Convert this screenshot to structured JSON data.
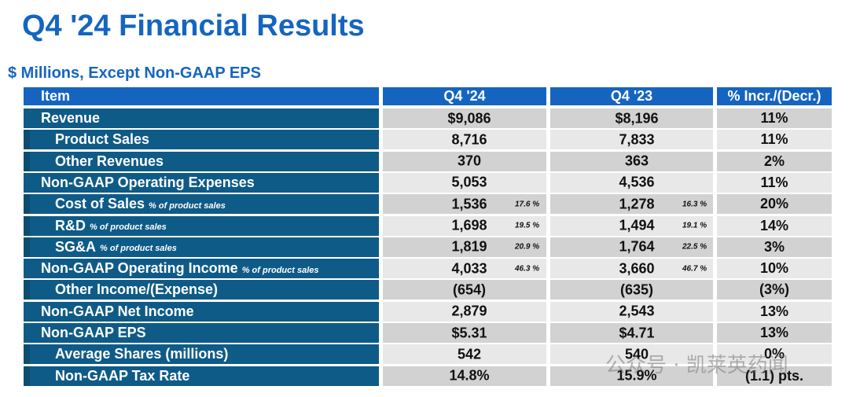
{
  "title": "Q4 '24 Financial Results",
  "subtitle": "$ Millions, Except Non-GAAP EPS",
  "table": {
    "header": [
      "Item",
      "Q4 '24",
      "Q4 '23",
      "% Incr./(Decr.)"
    ],
    "rows": [
      {
        "item": "Revenue",
        "level": 0,
        "q4_24": "$9,086",
        "q4_23": "$8,196",
        "change": "11%"
      },
      {
        "item": "Product Sales",
        "level": 1,
        "q4_24": "8,716",
        "q4_23": "7,833",
        "change": "11%"
      },
      {
        "item": "Other Revenues",
        "level": 1,
        "q4_24": "370",
        "q4_23": "363",
        "change": "2%"
      },
      {
        "item": "Non-GAAP Operating Expenses",
        "level": 0,
        "q4_24": "5,053",
        "q4_23": "4,536",
        "change": "11%"
      },
      {
        "item": "Cost of Sales",
        "note": "% of product sales",
        "level": 1,
        "q4_24": "1,536",
        "q4_24_pct": "17.6 %",
        "q4_23": "1,278",
        "q4_23_pct": "16.3 %",
        "change": "20%"
      },
      {
        "item": "R&D",
        "note": "% of product sales",
        "level": 1,
        "q4_24": "1,698",
        "q4_24_pct": "19.5 %",
        "q4_23": "1,494",
        "q4_23_pct": "19.1 %",
        "change": "14%"
      },
      {
        "item": "SG&A",
        "note": "% of product sales",
        "level": 1,
        "q4_24": "1,819",
        "q4_24_pct": "20.9 %",
        "q4_23": "1,764",
        "q4_23_pct": "22.5 %",
        "change": "3%"
      },
      {
        "item": "Non-GAAP Operating Income",
        "note": "% of product sales",
        "level": 0,
        "q4_24": "4,033",
        "q4_24_pct": "46.3 %",
        "q4_23": "3,660",
        "q4_23_pct": "46.7 %",
        "change": "10%"
      },
      {
        "item": "Other Income/(Expense)",
        "level": 1,
        "q4_24": "(654)",
        "q4_23": "(635)",
        "change": "(3%)"
      },
      {
        "item": "Non-GAAP Net Income",
        "level": 0,
        "q4_24": "2,879",
        "q4_23": "2,543",
        "change": "13%"
      },
      {
        "item": "Non-GAAP EPS",
        "level": 0,
        "q4_24": "$5.31",
        "q4_23": "$4.71",
        "change": "13%"
      },
      {
        "item": "Average Shares (millions)",
        "level": 1,
        "q4_24": "542",
        "q4_23": "540",
        "change": "0%"
      },
      {
        "item": "Non-GAAP Tax Rate",
        "level": 1,
        "q4_24": "14.8%",
        "q4_23": "15.9%",
        "change": "(1.1) pts."
      }
    ]
  },
  "watermark": "公众号 · 凯莱英药闻"
}
